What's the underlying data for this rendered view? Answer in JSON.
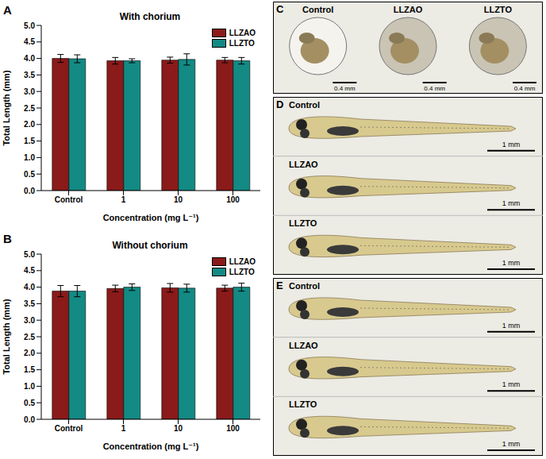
{
  "chart_data": [
    {
      "type": "bar",
      "panel": "A",
      "title": "With chorium",
      "x_label": "Concentration (mg L⁻¹)",
      "y_label": "Total Length (mm)",
      "categories": [
        "Control",
        "1",
        "10",
        "100"
      ],
      "series": [
        {
          "name": "LLZAO",
          "color": "#8b1a1a",
          "values": [
            4.0,
            3.93,
            3.95,
            3.95
          ],
          "errors": [
            0.12,
            0.1,
            0.09,
            0.08
          ]
        },
        {
          "name": "LLZTO",
          "color": "#138a84",
          "values": [
            3.99,
            3.93,
            3.97,
            3.93
          ],
          "errors": [
            0.12,
            0.06,
            0.17,
            0.1
          ]
        }
      ],
      "ylim": [
        0,
        5
      ],
      "yticks": [
        {
          "value": 0,
          "label": "0.0"
        },
        0.5,
        {
          "value": 1,
          "label": "1.0"
        },
        1.5,
        {
          "value": 2,
          "label": "2.0"
        },
        2.5,
        {
          "value": 3,
          "label": "3.0"
        },
        3.5,
        {
          "value": 4,
          "label": "4.0"
        },
        4.5,
        {
          "value": 5,
          "label": "5.0"
        }
      ],
      "grid": false,
      "legend": "upper right"
    },
    {
      "type": "bar",
      "panel": "B",
      "title": "Without chorium",
      "x_label": "Concentration (mg L⁻¹)",
      "y_label": "Total Length (mm)",
      "categories": [
        "Control",
        "1",
        "10",
        "100"
      ],
      "series": [
        {
          "name": "LLZAO",
          "color": "#8b1a1a",
          "values": [
            3.88,
            3.96,
            3.98,
            3.97
          ],
          "errors": [
            0.17,
            0.1,
            0.13,
            0.09
          ]
        },
        {
          "name": "LLZTO",
          "color": "#138a84",
          "values": [
            3.88,
            4.0,
            3.97,
            4.0
          ],
          "errors": [
            0.17,
            0.1,
            0.12,
            0.12
          ]
        }
      ],
      "ylim": [
        0,
        5
      ],
      "yticks": [
        {
          "value": 0,
          "label": "0.0"
        },
        0.5,
        {
          "value": 1,
          "label": "1.0"
        },
        1.5,
        {
          "value": 2,
          "label": "2.0"
        },
        2.5,
        {
          "value": 3,
          "label": "3.0"
        },
        3.5,
        {
          "value": 4,
          "label": "4.0"
        },
        4.5,
        {
          "value": 5,
          "label": "5.0"
        }
      ],
      "grid": false,
      "legend": "upper right"
    }
  ],
  "image_panels": [
    {
      "panel": "C",
      "labels": [
        "Control",
        "LLZAO",
        "LLZTO"
      ],
      "scale_bar": "0.4 mm"
    },
    {
      "panel": "D",
      "labels": [
        "Control",
        "LLZAO",
        "LLZTO"
      ],
      "scale_bar": "1 mm"
    },
    {
      "panel": "E",
      "labels": [
        "Control",
        "LLZAO",
        "LLZTO"
      ],
      "scale_bar": "1 mm"
    }
  ]
}
